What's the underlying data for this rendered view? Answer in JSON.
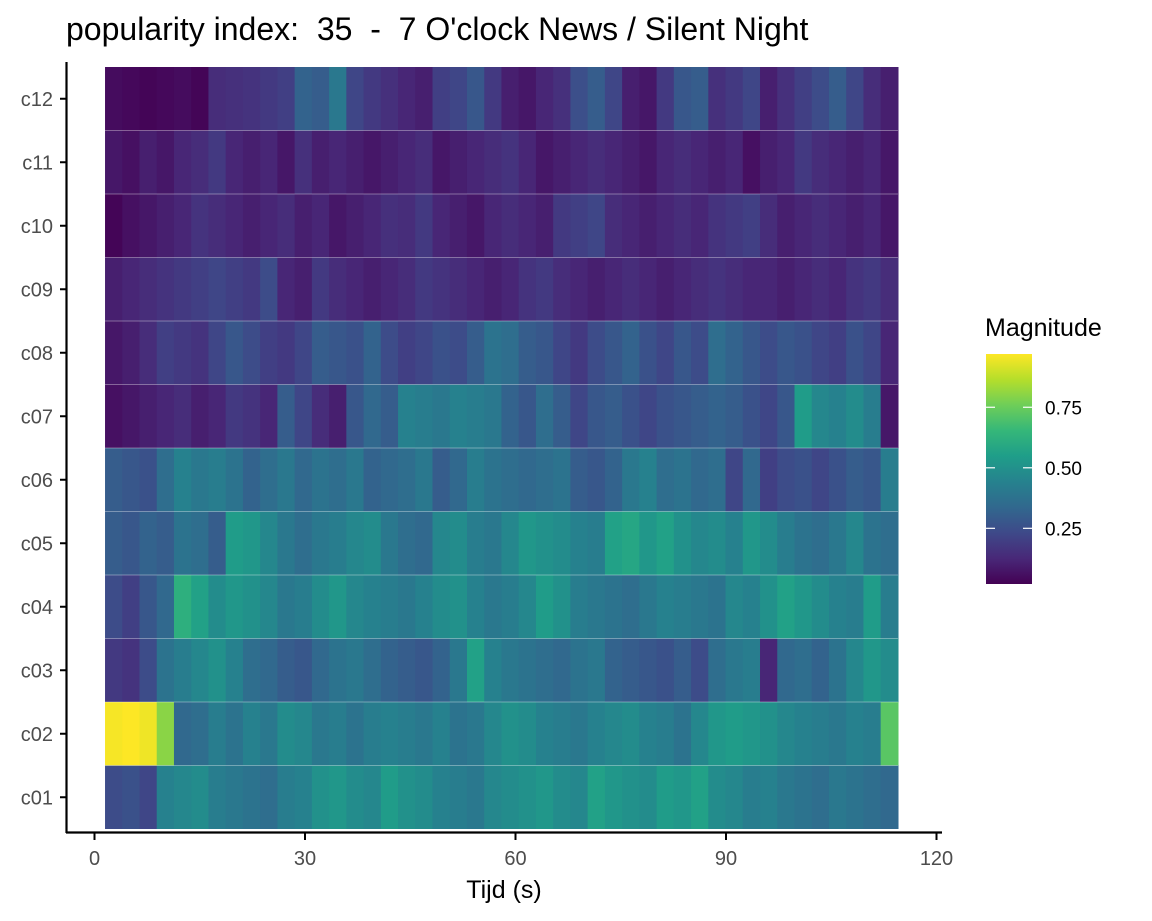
{
  "chart_data": {
    "type": "heatmap",
    "title": "popularity index:  35  -  7 O'clock News / Silent Night",
    "xlabel": "Tijd (s)",
    "ylabel": "",
    "xlim": [
      0,
      120
    ],
    "x_ticks": [
      0,
      30,
      60,
      90,
      120
    ],
    "x_tick_labels": [
      "0",
      "30",
      "60",
      "90",
      "120"
    ],
    "rows": [
      "c12",
      "c11",
      "c10",
      "c09",
      "c08",
      "c07",
      "c06",
      "c05",
      "c04",
      "c03",
      "c02",
      "c01"
    ],
    "x_range": [
      1.5,
      114.5
    ],
    "columns_per_row": 46,
    "values": [
      [
        0.05,
        0.04,
        0.03,
        0.04,
        0.05,
        0.03,
        0.14,
        0.15,
        0.16,
        0.18,
        0.2,
        0.32,
        0.3,
        0.4,
        0.22,
        0.18,
        0.15,
        0.12,
        0.1,
        0.2,
        0.22,
        0.28,
        0.18,
        0.1,
        0.08,
        0.12,
        0.15,
        0.25,
        0.3,
        0.22,
        0.1,
        0.08,
        0.18,
        0.28,
        0.3,
        0.15,
        0.18,
        0.22,
        0.1,
        0.15,
        0.2,
        0.24,
        0.3,
        0.22,
        0.14,
        0.1
      ],
      [
        0.08,
        0.06,
        0.1,
        0.08,
        0.12,
        0.14,
        0.18,
        0.12,
        0.1,
        0.12,
        0.08,
        0.15,
        0.1,
        0.12,
        0.1,
        0.08,
        0.1,
        0.12,
        0.14,
        0.08,
        0.1,
        0.12,
        0.14,
        0.16,
        0.12,
        0.08,
        0.1,
        0.12,
        0.14,
        0.12,
        0.1,
        0.08,
        0.12,
        0.14,
        0.12,
        0.1,
        0.12,
        0.06,
        0.1,
        0.12,
        0.18,
        0.14,
        0.12,
        0.1,
        0.12,
        0.08
      ],
      [
        0.03,
        0.06,
        0.08,
        0.1,
        0.12,
        0.16,
        0.14,
        0.12,
        0.1,
        0.12,
        0.14,
        0.1,
        0.12,
        0.08,
        0.1,
        0.12,
        0.15,
        0.14,
        0.18,
        0.12,
        0.1,
        0.08,
        0.12,
        0.14,
        0.12,
        0.1,
        0.18,
        0.2,
        0.22,
        0.14,
        0.12,
        0.1,
        0.12,
        0.14,
        0.12,
        0.16,
        0.18,
        0.2,
        0.14,
        0.1,
        0.12,
        0.14,
        0.12,
        0.1,
        0.12,
        0.08
      ],
      [
        0.1,
        0.12,
        0.14,
        0.16,
        0.18,
        0.2,
        0.22,
        0.2,
        0.18,
        0.24,
        0.12,
        0.1,
        0.18,
        0.14,
        0.12,
        0.1,
        0.12,
        0.14,
        0.18,
        0.16,
        0.14,
        0.12,
        0.1,
        0.12,
        0.16,
        0.18,
        0.14,
        0.12,
        0.1,
        0.12,
        0.14,
        0.12,
        0.1,
        0.12,
        0.14,
        0.16,
        0.14,
        0.12,
        0.12,
        0.1,
        0.12,
        0.14,
        0.12,
        0.16,
        0.18,
        0.14
      ],
      [
        0.08,
        0.1,
        0.14,
        0.2,
        0.18,
        0.16,
        0.22,
        0.28,
        0.24,
        0.2,
        0.18,
        0.22,
        0.3,
        0.28,
        0.26,
        0.32,
        0.24,
        0.2,
        0.22,
        0.26,
        0.24,
        0.3,
        0.38,
        0.36,
        0.3,
        0.28,
        0.22,
        0.18,
        0.24,
        0.28,
        0.32,
        0.26,
        0.22,
        0.28,
        0.24,
        0.36,
        0.32,
        0.28,
        0.24,
        0.28,
        0.26,
        0.22,
        0.2,
        0.26,
        0.22,
        0.12
      ],
      [
        0.06,
        0.08,
        0.1,
        0.12,
        0.14,
        0.1,
        0.12,
        0.18,
        0.16,
        0.12,
        0.3,
        0.22,
        0.14,
        0.1,
        0.28,
        0.34,
        0.3,
        0.44,
        0.42,
        0.4,
        0.44,
        0.42,
        0.4,
        0.32,
        0.28,
        0.36,
        0.3,
        0.22,
        0.28,
        0.3,
        0.26,
        0.22,
        0.26,
        0.28,
        0.3,
        0.32,
        0.3,
        0.26,
        0.22,
        0.28,
        0.54,
        0.46,
        0.44,
        0.48,
        0.42,
        0.08
      ],
      [
        0.3,
        0.28,
        0.26,
        0.36,
        0.44,
        0.4,
        0.42,
        0.38,
        0.32,
        0.36,
        0.4,
        0.34,
        0.38,
        0.36,
        0.4,
        0.32,
        0.34,
        0.36,
        0.4,
        0.3,
        0.34,
        0.42,
        0.38,
        0.36,
        0.34,
        0.36,
        0.38,
        0.3,
        0.28,
        0.32,
        0.4,
        0.44,
        0.36,
        0.38,
        0.34,
        0.36,
        0.22,
        0.34,
        0.2,
        0.24,
        0.26,
        0.22,
        0.26,
        0.3,
        0.28,
        0.42
      ],
      [
        0.3,
        0.28,
        0.32,
        0.3,
        0.38,
        0.36,
        0.3,
        0.54,
        0.52,
        0.46,
        0.4,
        0.36,
        0.4,
        0.42,
        0.46,
        0.48,
        0.4,
        0.36,
        0.34,
        0.46,
        0.48,
        0.42,
        0.4,
        0.46,
        0.52,
        0.5,
        0.48,
        0.44,
        0.42,
        0.56,
        0.58,
        0.52,
        0.56,
        0.5,
        0.46,
        0.48,
        0.44,
        0.52,
        0.48,
        0.42,
        0.38,
        0.36,
        0.4,
        0.46,
        0.38,
        0.36
      ],
      [
        0.24,
        0.2,
        0.28,
        0.34,
        0.62,
        0.56,
        0.48,
        0.52,
        0.5,
        0.46,
        0.4,
        0.42,
        0.48,
        0.52,
        0.46,
        0.44,
        0.42,
        0.4,
        0.44,
        0.48,
        0.5,
        0.44,
        0.4,
        0.42,
        0.46,
        0.54,
        0.5,
        0.42,
        0.4,
        0.38,
        0.36,
        0.4,
        0.44,
        0.42,
        0.4,
        0.38,
        0.46,
        0.44,
        0.5,
        0.56,
        0.52,
        0.48,
        0.44,
        0.42,
        0.54,
        0.42
      ],
      [
        0.18,
        0.16,
        0.24,
        0.38,
        0.42,
        0.46,
        0.5,
        0.44,
        0.36,
        0.34,
        0.3,
        0.28,
        0.34,
        0.38,
        0.4,
        0.36,
        0.32,
        0.3,
        0.28,
        0.32,
        0.4,
        0.56,
        0.44,
        0.4,
        0.38,
        0.36,
        0.34,
        0.38,
        0.4,
        0.32,
        0.3,
        0.28,
        0.26,
        0.3,
        0.24,
        0.36,
        0.4,
        0.42,
        0.12,
        0.34,
        0.36,
        0.32,
        0.38,
        0.46,
        0.52,
        0.48
      ],
      [
        0.96,
        0.97,
        0.95,
        0.8,
        0.34,
        0.36,
        0.42,
        0.38,
        0.44,
        0.4,
        0.48,
        0.46,
        0.4,
        0.42,
        0.38,
        0.42,
        0.44,
        0.42,
        0.4,
        0.44,
        0.38,
        0.4,
        0.46,
        0.5,
        0.48,
        0.44,
        0.42,
        0.4,
        0.44,
        0.46,
        0.48,
        0.44,
        0.42,
        0.38,
        0.46,
        0.52,
        0.54,
        0.52,
        0.5,
        0.46,
        0.44,
        0.42,
        0.4,
        0.44,
        0.42,
        0.72
      ],
      [
        0.24,
        0.26,
        0.22,
        0.44,
        0.46,
        0.48,
        0.42,
        0.4,
        0.38,
        0.36,
        0.42,
        0.44,
        0.5,
        0.52,
        0.48,
        0.46,
        0.54,
        0.5,
        0.48,
        0.44,
        0.42,
        0.4,
        0.46,
        0.48,
        0.5,
        0.52,
        0.48,
        0.46,
        0.56,
        0.52,
        0.5,
        0.48,
        0.54,
        0.52,
        0.56,
        0.48,
        0.46,
        0.42,
        0.44,
        0.4,
        0.38,
        0.36,
        0.4,
        0.38,
        0.36,
        0.34
      ]
    ],
    "legend": {
      "title": "Magnitude",
      "placement": "right",
      "range": [
        0.02,
        0.97
      ],
      "ticks": [
        0.25,
        0.5,
        0.75
      ],
      "tick_labels": [
        "0.25",
        "0.50",
        "0.75"
      ],
      "colormap": "viridis"
    },
    "grid": false
  },
  "colors": {
    "viridis_stops": [
      "#440154",
      "#482878",
      "#3e4989",
      "#31688e",
      "#26828e",
      "#1f9e89",
      "#35b779",
      "#6ece58",
      "#b5de2b",
      "#fde725"
    ],
    "axis": "#000000",
    "tick_text": "#4d4d4d",
    "row_separator": "#ffffff"
  }
}
